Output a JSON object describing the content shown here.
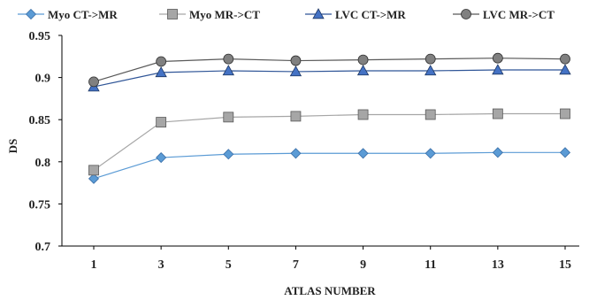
{
  "chart_data": {
    "type": "line",
    "xlabel": "ATLAS NUMBER",
    "ylabel": "DS",
    "x": [
      1,
      3,
      5,
      7,
      9,
      11,
      13,
      15
    ],
    "x_tick_labels": [
      "1",
      "3",
      "5",
      "7",
      "9",
      "11",
      "13",
      "15"
    ],
    "ylim": [
      0.7,
      0.95
    ],
    "y_tick_labels": [
      "0.7",
      "0.75",
      "0.8",
      "0.85",
      "0.9",
      "0.95"
    ],
    "y_ticks": [
      0.7,
      0.75,
      0.8,
      0.85,
      0.9,
      0.95
    ],
    "grid": false,
    "legend_position": "top",
    "series": [
      {
        "name": "Myo CT->MR",
        "marker": "diamond",
        "color": "#5B9BD5",
        "line_color": "#5B9BD5",
        "values": [
          0.78,
          0.805,
          0.809,
          0.81,
          0.81,
          0.81,
          0.811,
          0.811
        ]
      },
      {
        "name": "Myo MR->CT",
        "marker": "square",
        "color": "#A6A6A6",
        "line_color": "#A6A6A6",
        "values": [
          0.79,
          0.847,
          0.853,
          0.854,
          0.856,
          0.856,
          0.857,
          0.857
        ]
      },
      {
        "name": "LVC CT->MR",
        "marker": "triangle",
        "color": "#4472C4",
        "line_color": "#2F5597",
        "values": [
          0.889,
          0.906,
          0.908,
          0.907,
          0.908,
          0.908,
          0.909,
          0.909
        ]
      },
      {
        "name": "LVC MR->CT",
        "marker": "circle",
        "color": "#808080",
        "line_color": "#595959",
        "values": [
          0.895,
          0.919,
          0.922,
          0.92,
          0.921,
          0.922,
          0.923,
          0.922
        ]
      }
    ]
  }
}
